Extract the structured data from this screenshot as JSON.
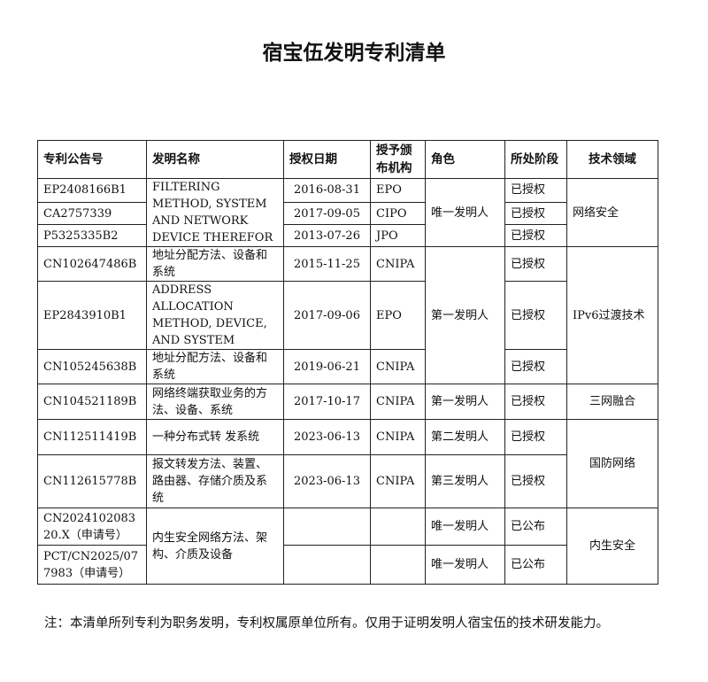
{
  "title": "宿宝伍发明专利清单",
  "headers": [
    "专利公告号",
    "发明名称",
    "授权日期",
    "授予颁布机构",
    "角色",
    "所处阶段",
    "技术领域"
  ],
  "rows": [
    {
      "no": "EP2408166B1",
      "date": "2016-08-31",
      "org": "EPO",
      "stage": "已授权"
    },
    {
      "no": "CA2757339",
      "date": "2017-09-05",
      "org": "CIPO",
      "stage": "已授权"
    },
    {
      "no": "P5325335B2",
      "date": "2013-07-26",
      "org": "JPO",
      "stage": "已授权"
    },
    {
      "no": "CN102647486B",
      "date": "2015-11-25",
      "org": "CNIPA",
      "stage": "已授权"
    },
    {
      "no": "EP2843910B1",
      "date": "2017-09-06",
      "org": "EPO",
      "stage": "已授权"
    },
    {
      "no": "CN105245638B",
      "date": "2019-06-21",
      "org": "CNIPA",
      "stage": "已授权"
    },
    {
      "no": "CN104521189B",
      "date": "2017-10-17",
      "org": "CNIPA",
      "stage": "已授权"
    },
    {
      "no": "CN112511419B",
      "date": "2023-06-13",
      "org": "CNIPA",
      "stage": "已授权"
    },
    {
      "no": "CN112615778B",
      "date": "2023-06-13",
      "org": "CNIPA",
      "stage": "已授权"
    },
    {
      "no": "CN202410208320.X（申请号）",
      "date": "",
      "org": "",
      "stage": "已公布"
    },
    {
      "no": "PCT/CN2025/077983（申请号）",
      "date": "",
      "org": "",
      "stage": "已公布"
    }
  ],
  "names": [
    {
      "start": 0,
      "span": 3,
      "text": "FILTERING METHOD, SYSTEM AND NETWORK DEVICE THEREFOR"
    },
    {
      "start": 3,
      "span": 1,
      "text": "地址分配方法、设备和系统"
    },
    {
      "start": 4,
      "span": 1,
      "text": "ADDRESS ALLOCATION METHOD, DEVICE, AND SYSTEM"
    },
    {
      "start": 5,
      "span": 1,
      "text": "地址分配方法、设备和系统"
    },
    {
      "start": 6,
      "span": 1,
      "text": "网络终端获取业务的方法、设备、系统"
    },
    {
      "start": 7,
      "span": 1,
      "text": "一种分布式转 发系统"
    },
    {
      "start": 8,
      "span": 1,
      "text": "报文转发方法、装置、路由器、存储介质及系统"
    },
    {
      "start": 9,
      "span": 2,
      "text": "内生安全网络方法、架构、介质及设备"
    }
  ],
  "roles": [
    {
      "start": 0,
      "span": 3,
      "text": "唯一发明人"
    },
    {
      "start": 3,
      "span": 3,
      "text": "第一发明人"
    },
    {
      "start": 6,
      "span": 1,
      "text": "第一发明人"
    },
    {
      "start": 7,
      "span": 1,
      "text": "第二发明人"
    },
    {
      "start": 8,
      "span": 1,
      "text": "第三发明人"
    },
    {
      "start": 9,
      "span": 1,
      "text": "唯一发明人"
    },
    {
      "start": 10,
      "span": 1,
      "text": "唯一发明人"
    }
  ],
  "fields": [
    {
      "start": 0,
      "span": 3,
      "text": "网络安全"
    },
    {
      "start": 3,
      "span": 3,
      "text": "IPv6过渡技术"
    },
    {
      "start": 6,
      "span": 1,
      "text": "三网融合"
    },
    {
      "start": 7,
      "span": 2,
      "text": "国防网络"
    },
    {
      "start": 9,
      "span": 2,
      "text": "内生安全"
    }
  ],
  "note": "注：本清单所列专利为职务发明，专利权属原单位所有。仅用于证明发明人宿宝伍的技术研发能力。"
}
